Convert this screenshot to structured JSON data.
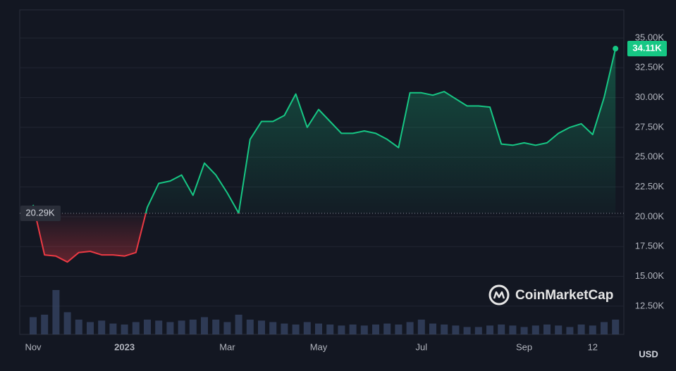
{
  "chart_data": {
    "type": "line",
    "categories": [
      "Nov",
      null,
      null,
      null,
      null,
      null,
      null,
      null,
      "2023",
      null,
      null,
      null,
      null,
      null,
      null,
      null,
      null,
      "Mar",
      null,
      null,
      null,
      null,
      null,
      null,
      null,
      "May",
      null,
      null,
      null,
      null,
      null,
      null,
      null,
      null,
      "Jul",
      null,
      null,
      null,
      null,
      null,
      null,
      null,
      null,
      "Sep",
      null,
      null,
      null,
      null,
      null,
      "12",
      null,
      null
    ],
    "values": [
      21000,
      16800,
      16700,
      16200,
      17000,
      17100,
      16800,
      16800,
      16700,
      17000,
      20800,
      22800,
      23000,
      23500,
      21800,
      24500,
      23500,
      22000,
      20300,
      26500,
      28000,
      28000,
      28500,
      30300,
      27500,
      29000,
      28000,
      27000,
      27000,
      27200,
      27000,
      26500,
      25800,
      30400,
      30400,
      30200,
      30500,
      29900,
      29300,
      29300,
      29200,
      26100,
      26000,
      26200,
      26000,
      26200,
      27000,
      27500,
      27800,
      26900,
      30000,
      34110
    ],
    "value_labels": [
      null,
      null,
      null,
      null,
      null,
      null,
      null,
      null,
      null,
      null,
      null,
      null,
      null,
      null,
      null,
      null,
      null,
      null,
      null,
      null,
      null,
      null,
      null,
      null,
      null,
      null,
      null,
      null,
      null,
      null,
      null,
      null,
      null,
      null,
      null,
      null,
      null,
      null,
      null,
      null,
      null,
      null,
      null,
      null,
      null,
      null,
      null,
      null,
      null,
      null,
      null,
      "34.11K"
    ],
    "color": "#16c784",
    "down_color": "#ea3943",
    "baseline": {
      "value": 20290,
      "label": "20.29K"
    },
    "ylim": [
      10130,
      37360
    ],
    "yticks": [
      {
        "value": 12500,
        "label": "12.50K"
      },
      {
        "value": 15000,
        "label": "15.00K"
      },
      {
        "value": 17500,
        "label": "17.50K"
      },
      {
        "value": 20000,
        "label": "20.00K"
      },
      {
        "value": 22500,
        "label": "22.50K"
      },
      {
        "value": 25000,
        "label": "25.00K"
      },
      {
        "value": 27500,
        "label": "27.50K"
      },
      {
        "value": 30000,
        "label": "30.00K"
      },
      {
        "value": 32500,
        "label": "32.50K"
      },
      {
        "value": 35000,
        "label": "35.00K"
      }
    ],
    "grid": true,
    "volume": {
      "values": [
        35,
        40,
        90,
        45,
        30,
        25,
        28,
        22,
        20,
        25,
        30,
        28,
        25,
        28,
        30,
        35,
        30,
        25,
        40,
        30,
        28,
        25,
        22,
        20,
        25,
        22,
        20,
        18,
        20,
        18,
        20,
        22,
        20,
        25,
        30,
        22,
        20,
        18,
        15,
        15,
        18,
        20,
        18,
        15,
        18,
        20,
        18,
        15,
        20,
        18,
        25,
        30
      ],
      "lim": [
        0,
        100
      ],
      "color": "#3a4a6b"
    },
    "logo": "CoinMarketCap",
    "currency": "USD"
  }
}
